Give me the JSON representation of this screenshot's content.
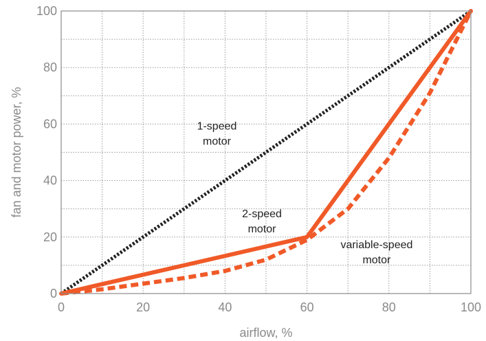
{
  "chart_data": {
    "type": "line",
    "title": "",
    "xlabel": "airflow, %",
    "ylabel": "fan and motor power, %",
    "xlim": [
      0,
      100
    ],
    "ylim": [
      0,
      100
    ],
    "xticks": [
      0,
      20,
      40,
      60,
      80,
      100
    ],
    "yticks": [
      0,
      20,
      40,
      60,
      80,
      100
    ],
    "grid": true,
    "grid_step": 10,
    "legend": "none",
    "series": [
      {
        "id": "one-speed",
        "style": "dotted",
        "color": "#222222",
        "x": [
          0,
          100
        ],
        "y": [
          0,
          100
        ]
      },
      {
        "id": "two-speed",
        "style": "solid",
        "color": "#f05a28",
        "x": [
          0,
          60,
          100
        ],
        "y": [
          0,
          20,
          100
        ]
      },
      {
        "id": "variable-speed",
        "style": "dashed",
        "color": "#f05a28",
        "x": [
          0,
          10,
          20,
          30,
          40,
          50,
          60,
          70,
          80,
          90,
          100
        ],
        "y": [
          0,
          1.5,
          3.5,
          5.5,
          8,
          12,
          19,
          30,
          48,
          71,
          100
        ]
      }
    ],
    "annotations": [
      {
        "id": "one-speed",
        "lines": [
          "1-speed",
          "motor"
        ],
        "x": 38,
        "y": 58
      },
      {
        "id": "two-speed",
        "lines": [
          "2-speed",
          "motor"
        ],
        "x": 49,
        "y": 27
      },
      {
        "id": "variable-speed",
        "lines": [
          "variable-speed",
          "motor"
        ],
        "x": 77,
        "y": 16
      }
    ]
  }
}
